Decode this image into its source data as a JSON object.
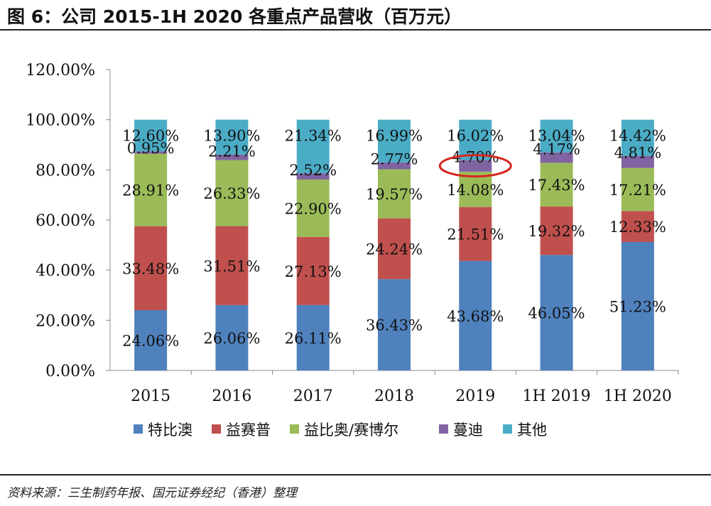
{
  "header": {
    "title": "图 6：公司 2015-1H 2020 各重点产品营收（百万元）"
  },
  "footer": {
    "source": "资料来源：三生制药年报、国元证券经纪（香港）整理"
  },
  "chart_data": {
    "type": "bar",
    "stacked": true,
    "title": "",
    "xlabel": "",
    "ylabel": "",
    "ylim": [
      0,
      120
    ],
    "yticks": [
      "0.00%",
      "20.00%",
      "40.00%",
      "60.00%",
      "80.00%",
      "100.00%",
      "120.00%"
    ],
    "categories": [
      "2015",
      "2016",
      "2017",
      "2018",
      "2019",
      "1H 2019",
      "1H 2020"
    ],
    "series": [
      {
        "name": "特比澳",
        "color": "#4F81BD",
        "values": [
          24.06,
          26.06,
          26.11,
          36.43,
          43.68,
          46.05,
          51.23
        ],
        "labels": [
          "24.06%",
          "26.06%",
          "26.11%",
          "36.43%",
          "43.68%",
          "46.05%",
          "51.23%"
        ]
      },
      {
        "name": "益赛普",
        "color": "#C0504D",
        "values": [
          33.48,
          31.51,
          27.13,
          24.24,
          21.51,
          19.32,
          12.33
        ],
        "labels": [
          "33.48%",
          "31.51%",
          "27.13%",
          "24.24%",
          "21.51%",
          "19.32%",
          "12.33%"
        ]
      },
      {
        "name": "益比奥/赛博尔",
        "color": "#9BBB59",
        "values": [
          28.91,
          26.33,
          22.9,
          19.57,
          14.08,
          17.43,
          17.21
        ],
        "labels": [
          "28.91%",
          "26.33%",
          "22.90%",
          "19.57%",
          "14.08%",
          "17.43%",
          "17.21%"
        ]
      },
      {
        "name": "蔓迪",
        "color": "#8064A2",
        "values": [
          0.95,
          2.21,
          2.52,
          2.77,
          4.7,
          4.17,
          4.81
        ],
        "labels": [
          "0.95%",
          "2.21%",
          "2.52%",
          "2.77%",
          "4.70%",
          "4.17%",
          "4.81%"
        ]
      },
      {
        "name": "其他",
        "color": "#4BACC6",
        "values": [
          12.6,
          13.9,
          21.34,
          16.99,
          16.02,
          13.04,
          14.42
        ],
        "labels": [
          "12.60%",
          "13.90%",
          "21.34%",
          "16.99%",
          "16.02%",
          "13.04%",
          "14.42%"
        ]
      }
    ],
    "grid": false,
    "legend_position": "bottom",
    "annotation": {
      "type": "ellipse",
      "color": "#D7261E",
      "category": "2019",
      "series": "蔓迪",
      "label": "4.70%"
    }
  }
}
